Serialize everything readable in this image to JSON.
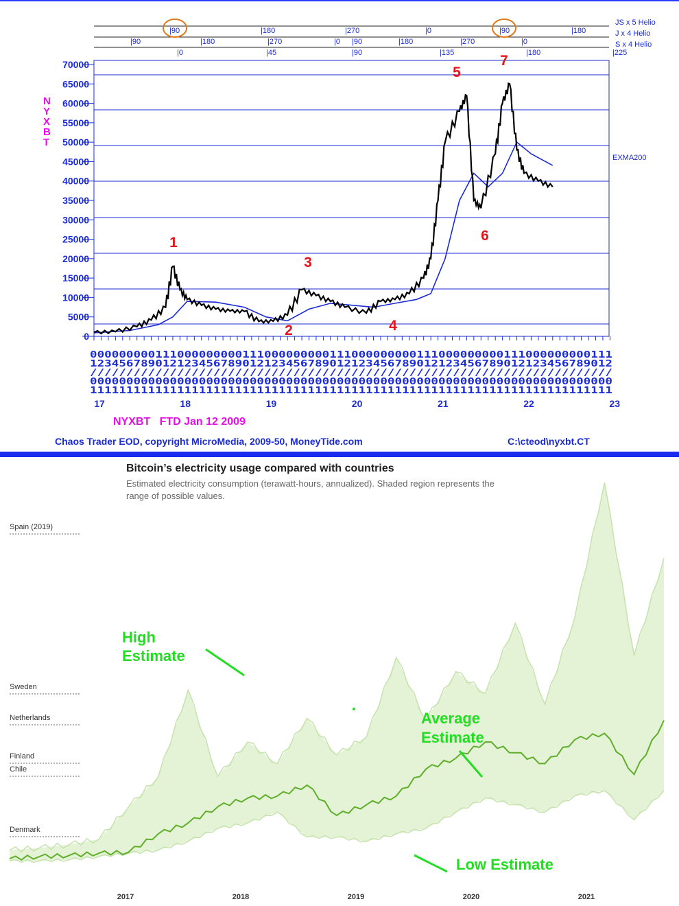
{
  "chart_data": [
    {
      "type": "line",
      "series": [
        {
          "name": "NYXBT",
          "x": [
            "17-01",
            "17-04",
            "17-07",
            "17-09",
            "17-11",
            "17-12",
            "18-01",
            "18-02",
            "18-04",
            "18-06",
            "18-08",
            "18-10",
            "18-12",
            "19-02",
            "19-04",
            "19-06",
            "19-08",
            "19-10",
            "19-12",
            "20-03",
            "20-05",
            "20-07",
            "20-09",
            "20-11",
            "20-12",
            "21-01",
            "21-02",
            "21-04",
            "21-05",
            "21-06",
            "21-07",
            "21-09",
            "21-10",
            "21-11",
            "21-12",
            "22-01",
            "22-03",
            "22-05"
          ],
          "values": [
            1000,
            1200,
            2500,
            4200,
            7500,
            18000,
            12000,
            9500,
            8000,
            7000,
            6500,
            6400,
            3800,
            3900,
            5500,
            12000,
            10500,
            9000,
            7500,
            6000,
            9000,
            9500,
            11000,
            15000,
            20000,
            35000,
            50000,
            58000,
            62000,
            35000,
            33000,
            47000,
            60000,
            65000,
            48000,
            42000,
            40000,
            38500
          ]
        },
        {
          "name": "EXMA200",
          "x": [
            "17-01",
            "17-06",
            "17-10",
            "17-12",
            "18-02",
            "18-06",
            "18-10",
            "19-01",
            "19-04",
            "19-07",
            "19-10",
            "20-01",
            "20-04",
            "20-07",
            "20-10",
            "20-12",
            "21-02",
            "21-04",
            "21-06",
            "21-08",
            "21-10",
            "21-12",
            "22-02",
            "22-05"
          ],
          "values": [
            900,
            1500,
            3000,
            5000,
            9000,
            8800,
            7500,
            5000,
            4000,
            7000,
            8500,
            8000,
            7500,
            8500,
            9500,
            11000,
            20000,
            35000,
            42000,
            38500,
            42000,
            50000,
            47000,
            44000
          ]
        }
      ],
      "y_ticks": [
        "70000",
        "65000",
        "60000",
        "55000",
        "50000",
        "45000",
        "40000",
        "35000",
        "30000",
        "25000",
        "20000",
        "15000",
        "10000",
        "5000",
        "0"
      ],
      "ylim": [
        0,
        70000
      ],
      "ylabel": "NYXBT",
      "year_labels": [
        "17",
        "18",
        "19",
        "20",
        "21",
        "22",
        "23"
      ],
      "date_rows": {
        "row1": "000000000111000000000111000000000111000000000111000000000111000000000111",
        "row2": "123456789012123456789012123456789012123456789012123456789012123456789012",
        "row3": "////////////////////////////////////////////////////////////////////////",
        "row4": "000000000000000000000000000000000000000000000000000000000000000000000000",
        "row5": "111111111111111111111111111111111111111111111111111111111111111111111111"
      },
      "helio": {
        "rows": [
          {
            "label": "JS x 5 Helio",
            "ticks": [
              "90",
              "180",
              "270",
              "0",
              "90",
              "180"
            ]
          },
          {
            "label": "J x 4 Helio",
            "ticks": [
              "90",
              "180",
              "270",
              "0",
              "90",
              "180",
              "270",
              "0"
            ]
          },
          {
            "label": "S x 4 Helio",
            "ticks": [
              "0",
              "45",
              "90",
              "135",
              "180",
              "225"
            ]
          }
        ]
      },
      "markers": [
        "1",
        "2",
        "3",
        "4",
        "5",
        "6",
        "7"
      ],
      "line_label": "EXMA200",
      "symbol_caption": "NYXBT   FTD Jan 12 2009",
      "footer_left": "Chaos Trader EOD, copyright MicroMedia, 2009-50, MoneyTide.com",
      "footer_right": "C:\\cteod\\nyxbt.CT",
      "colors": {
        "price": "#000000",
        "ema": "#1a2bd6",
        "grid": "#1a2bd6",
        "marker": "#e8141c",
        "circle": "#e07a1a"
      }
    },
    {
      "type": "area",
      "title": "Bitcoin’s electricity usage compared with countries",
      "subtitle_line1": "Estimated electricity consumption (terawatt-hours, annualized). Shaded region represents the",
      "subtitle_line2": "range of possible values.",
      "x_labels": [
        "2017",
        "2018",
        "2019",
        "2020",
        "2021"
      ],
      "countries": [
        "Spain (2019)",
        "Sweden",
        "Netherlands",
        "Finland",
        "Chile",
        "Denmark"
      ],
      "annotations": {
        "high_1": "High",
        "high_2": "Estimate",
        "avg_1": "Average",
        "avg_2": "Estimate",
        "low": "Low Estimate"
      },
      "series": [
        {
          "name": "High Estimate",
          "values": [
            20,
            22,
            25,
            30,
            60,
            88,
            168,
            88,
            120,
            100,
            142,
            108,
            125,
            198,
            140,
            185,
            165,
            230,
            155,
            235,
            360,
            200,
            290
          ]
        },
        {
          "name": "Average Estimate",
          "values": [
            12,
            14,
            15,
            17,
            18,
            35,
            45,
            60,
            68,
            70,
            80,
            52,
            62,
            70,
            95,
            105,
            120,
            110,
            100,
            122,
            128,
            90,
            140
          ]
        },
        {
          "name": "Low Estimate",
          "values": [
            10,
            10,
            11,
            14,
            17,
            20,
            28,
            40,
            45,
            55,
            32,
            32,
            28,
            35,
            40,
            55,
            68,
            62,
            55,
            70,
            75,
            48,
            75
          ]
        }
      ],
      "colors": {
        "average": "#5fae2a",
        "band": "#e4f2d6",
        "band_edge": "#c5e3ad",
        "annotation": "#22dd22"
      }
    }
  ]
}
